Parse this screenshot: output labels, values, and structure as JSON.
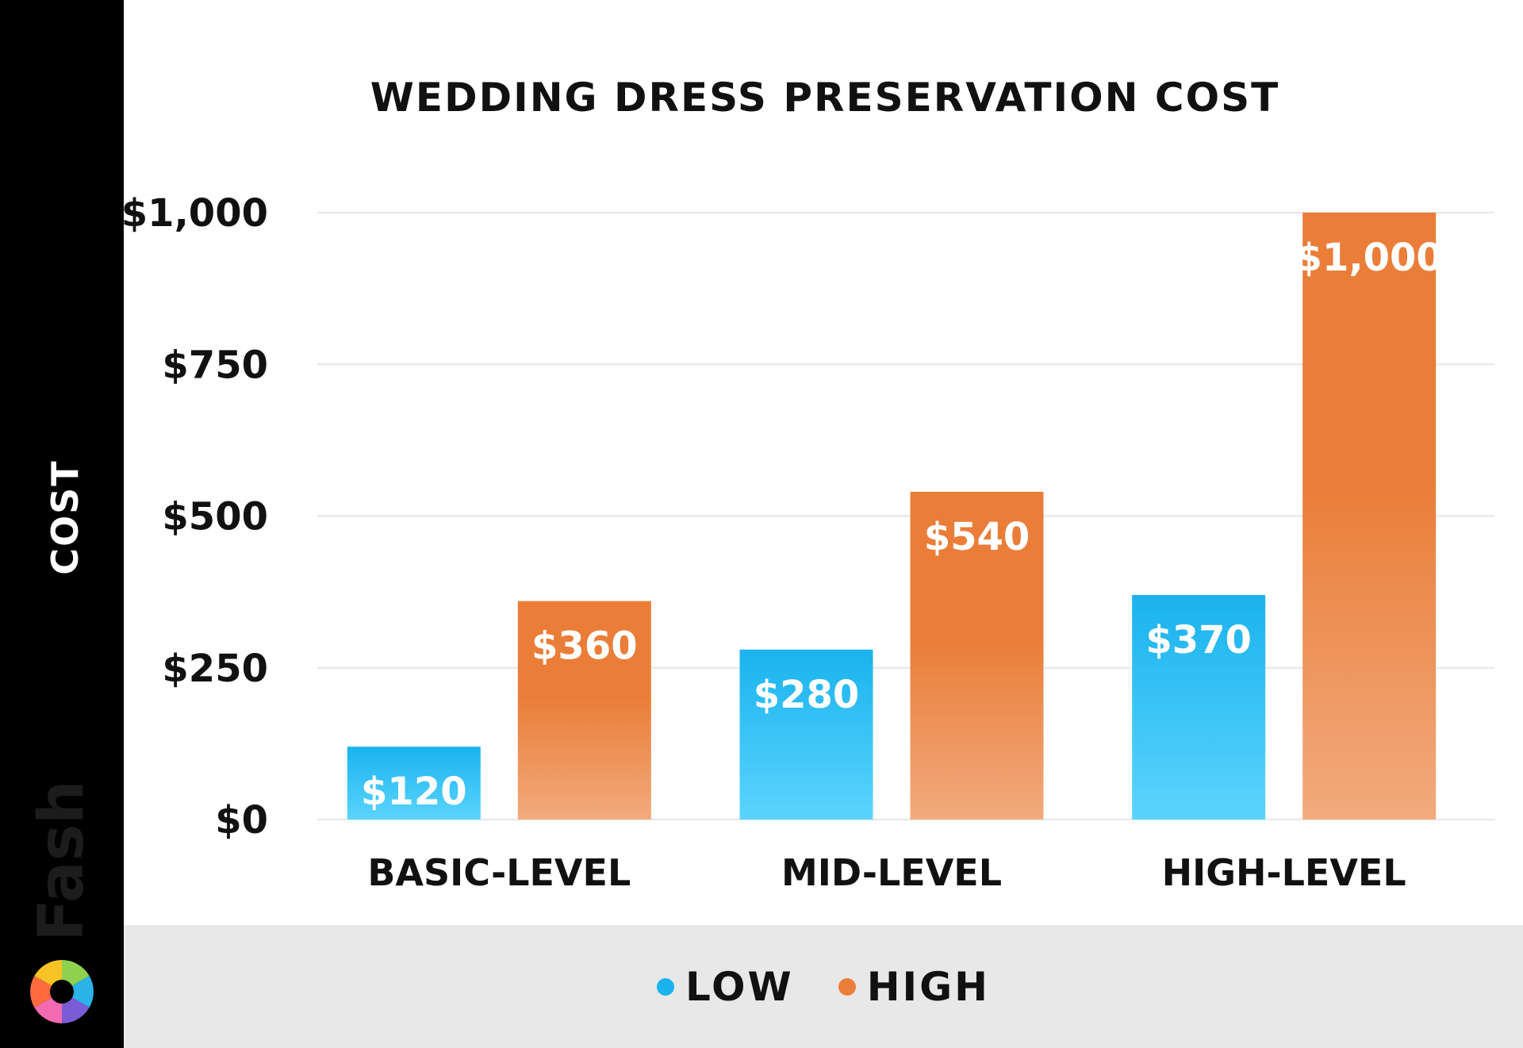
{
  "sidebar": {
    "axis_label": "COST",
    "brand_name": "Fash",
    "brand_logo_icon": "aperture-logo-icon"
  },
  "colors": {
    "low": "#1ab3ee",
    "low_light": "#5bd4fd",
    "high": "#ea7e39",
    "high_light": "#f2aa7d",
    "sidebar": "#000000",
    "legend_band": "#e8e8e8",
    "grid": "#e6e6e6"
  },
  "legend": {
    "items": [
      {
        "label": "LOW",
        "color": "#1ab3ee"
      },
      {
        "label": "HIGH",
        "color": "#ea7e39"
      }
    ]
  },
  "chart_data": {
    "type": "bar",
    "title": "WEDDING DRESS PRESERVATION COST",
    "xlabel": "",
    "ylabel": "COST",
    "categories": [
      "BASIC-LEVEL",
      "MID-LEVEL",
      "HIGH-LEVEL"
    ],
    "series": [
      {
        "name": "LOW",
        "values": [
          120,
          280,
          370
        ],
        "labels": [
          "$120",
          "$280",
          "$370"
        ]
      },
      {
        "name": "HIGH",
        "values": [
          360,
          540,
          1000
        ],
        "labels": [
          "$360",
          "$540",
          "$1,000"
        ]
      }
    ],
    "ylim": [
      0,
      1000
    ],
    "yticks": [
      0,
      250,
      500,
      750,
      1000
    ],
    "ytick_labels": [
      "$0",
      "$250",
      "$500",
      "$750",
      "$1,000"
    ],
    "grid": true,
    "legend_position": "bottom"
  }
}
